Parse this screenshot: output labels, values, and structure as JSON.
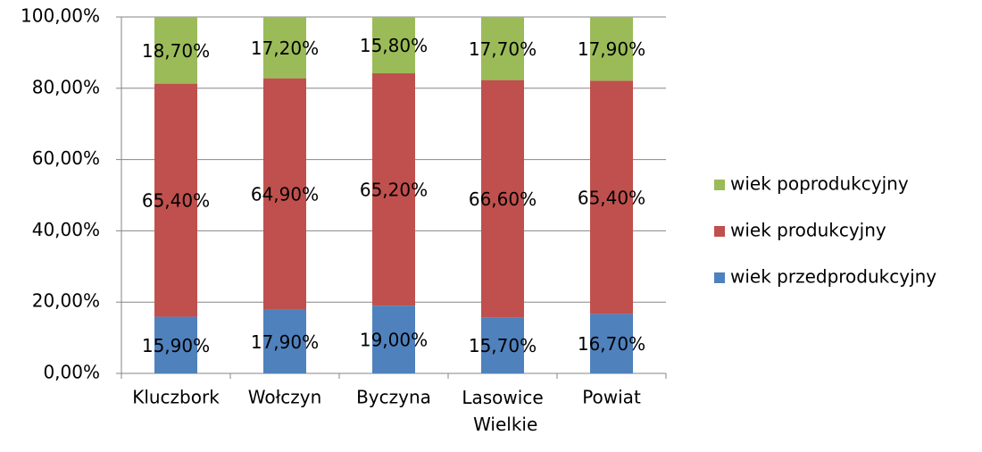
{
  "chart_data": {
    "type": "stacked-bar",
    "categories": [
      "Kluczbork",
      "Wołczyn",
      "Byczyna",
      "Lasowice Wielkie",
      "Powiat"
    ],
    "series": [
      {
        "name": "wiek przedprodukcyjny",
        "color": "#4f81bd",
        "values": [
          15.9,
          17.9,
          19.0,
          15.7,
          16.7
        ],
        "value_labels": [
          "15,90%",
          "17,90%",
          "19,00%",
          "15,70%",
          "16,70%"
        ]
      },
      {
        "name": "wiek produkcyjny",
        "color": "#c0504d",
        "values": [
          65.4,
          64.9,
          65.2,
          66.6,
          65.4
        ],
        "value_labels": [
          "65,40%",
          "64,90%",
          "65,20%",
          "66,60%",
          "65,40%"
        ]
      },
      {
        "name": "wiek poprodukcyjny",
        "color": "#9bbb59",
        "values": [
          18.7,
          17.2,
          15.8,
          17.7,
          17.9
        ],
        "value_labels": [
          "18,70%",
          "17,20%",
          "15,80%",
          "17,70%",
          "17,90%"
        ]
      }
    ],
    "ylim": [
      0,
      100
    ],
    "yticks": [
      {
        "value": 0,
        "label": "0,00%"
      },
      {
        "value": 20,
        "label": "20,00%"
      },
      {
        "value": 40,
        "label": "40,00%"
      },
      {
        "value": 60,
        "label": "60,00%"
      },
      {
        "value": 80,
        "label": "80,00%"
      },
      {
        "value": 100,
        "label": "100,00%"
      }
    ],
    "grid": true,
    "legend": "right"
  }
}
